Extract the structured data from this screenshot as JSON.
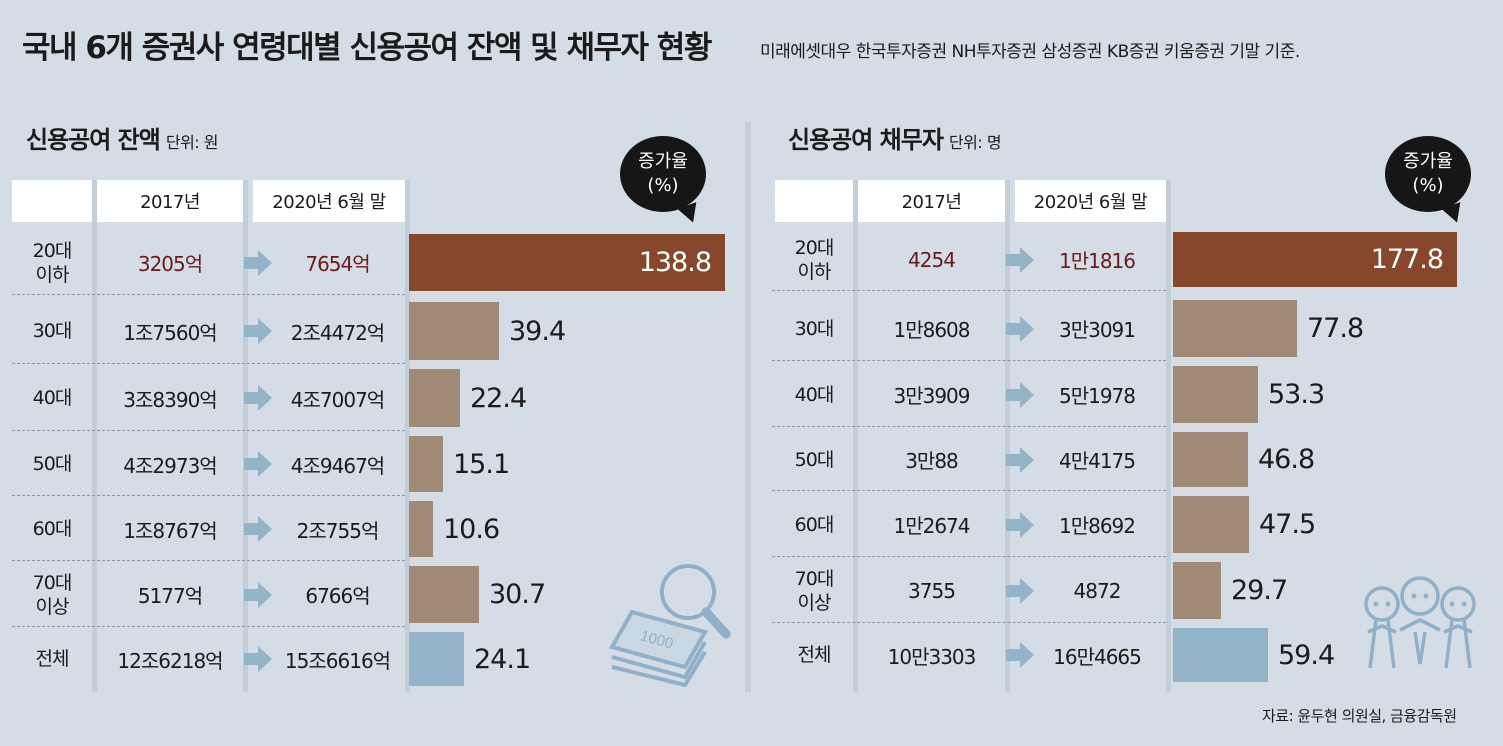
{
  "title": "국내 6개 증권사 연령대별 신용공여 잔액 및 채무자 현황",
  "subtitle": "미래에셋대우 한국투자증권 NH투자증권 삼성증권 KB증권 키움증권 기말 기준.",
  "source": "자료: 윤두현 의원실, 금융감독원",
  "colors": {
    "highlight": "#87472c",
    "default": "#a08977",
    "total": "#93b3c9",
    "arrow": "#93b3c9",
    "highlight_text": "#6a1a1a"
  },
  "chart_data": [
    {
      "type": "table",
      "title": "신용공여 잔액",
      "unit": "단위: 원",
      "columns": [
        "2017년",
        "2020년 6월 말"
      ],
      "bubble_lines": [
        "증가율",
        "(%)"
      ],
      "categories": [
        "20대 이하",
        "30대",
        "40대",
        "50대",
        "60대",
        "70대 이상",
        "전체"
      ],
      "category_lines": [
        [
          "20대",
          "이하"
        ],
        [
          "30대"
        ],
        [
          "40대"
        ],
        [
          "50대"
        ],
        [
          "60대"
        ],
        [
          "70대",
          "이상"
        ],
        [
          "전체"
        ]
      ],
      "values_2017": [
        "3205억",
        "1조7560억",
        "3조8390억",
        "4조2973억",
        "1조8767억",
        "5177억",
        "12조6218억"
      ],
      "values_2020": [
        "7654억",
        "2조4472억",
        "4조7007억",
        "4조9467억",
        "2조755억",
        "6766억",
        "15조6616억"
      ],
      "growth": [
        138.8,
        39.4,
        22.4,
        15.1,
        10.6,
        30.7,
        24.1
      ],
      "growth_labels": [
        "138.8",
        "39.4",
        "22.4",
        "15.1",
        "10.6",
        "30.7",
        "24.1"
      ]
    },
    {
      "type": "table",
      "title": "신용공여 채무자",
      "unit": "단위: 명",
      "columns": [
        "2017년",
        "2020년 6월 말"
      ],
      "bubble_lines": [
        "증가율",
        "(%)"
      ],
      "categories": [
        "20대 이하",
        "30대",
        "40대",
        "50대",
        "60대",
        "70대 이상",
        "전체"
      ],
      "category_lines": [
        [
          "20대",
          "이하"
        ],
        [
          "30대"
        ],
        [
          "40대"
        ],
        [
          "50대"
        ],
        [
          "60대"
        ],
        [
          "70대",
          "이상"
        ],
        [
          "전체"
        ]
      ],
      "values_2017": [
        "4254",
        "1만8608",
        "3만3909",
        "3만88",
        "1만2674",
        "3755",
        "10만3303"
      ],
      "values_2020": [
        "1만1816",
        "3만3091",
        "5만1978",
        "4만4175",
        "1만8692",
        "4872",
        "16만4665"
      ],
      "growth": [
        177.8,
        77.8,
        53.3,
        46.8,
        47.5,
        29.7,
        59.4
      ],
      "growth_labels": [
        "177.8",
        "77.8",
        "53.3",
        "46.8",
        "47.5",
        "29.7",
        "59.4"
      ]
    }
  ]
}
